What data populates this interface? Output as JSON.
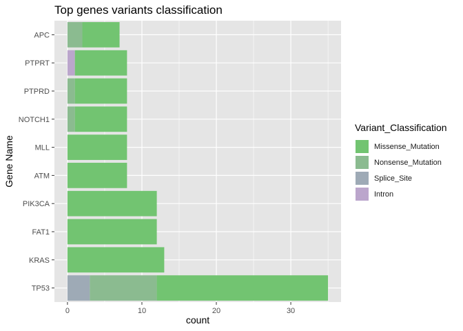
{
  "chart_data": {
    "type": "bar",
    "orientation": "horizontal",
    "stacked": true,
    "title": "Top genes variants classification",
    "xlabel": "count",
    "ylabel": "Gene Name",
    "xlim": [
      -1.75,
      36.75
    ],
    "x_ticks": [
      0,
      10,
      20,
      30
    ],
    "categories": [
      "APC",
      "PTPRT",
      "PTPRD",
      "NOTCH1",
      "MLL",
      "ATM",
      "PIK3CA",
      "FAT1",
      "KRAS",
      "TP53"
    ],
    "series": [
      {
        "name": "Missense_Mutation",
        "color": "#72c471",
        "values": [
          5,
          7,
          7,
          7,
          8,
          8,
          12,
          12,
          13,
          23
        ]
      },
      {
        "name": "Nonsense_Mutation",
        "color": "#8bbb90",
        "values": [
          2,
          0,
          1,
          1,
          0,
          0,
          0,
          0,
          0,
          9
        ]
      },
      {
        "name": "Splice_Site",
        "color": "#9eaab6",
        "values": [
          0,
          0,
          0,
          0,
          0,
          0,
          0,
          0,
          0,
          3
        ]
      },
      {
        "name": "Intron",
        "color": "#bba6cc",
        "values": [
          0,
          1,
          0,
          0,
          0,
          0,
          0,
          0,
          0,
          0
        ]
      }
    ],
    "stack_order_from_zero": [
      "Splice_Site",
      "Intron",
      "Nonsense_Mutation",
      "Missense_Mutation"
    ],
    "legend": {
      "title": "Variant_Classification",
      "position": "right",
      "entries": [
        "Missense_Mutation",
        "Nonsense_Mutation",
        "Splice_Site",
        "Intron"
      ]
    },
    "grid": true,
    "panel_background": "#e5e5e5",
    "grid_color": "#ffffff"
  }
}
